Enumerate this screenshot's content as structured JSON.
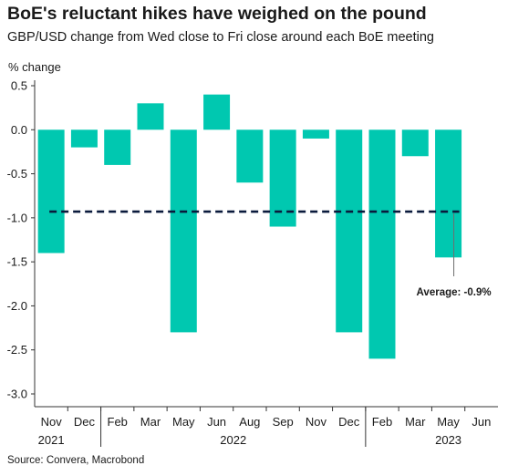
{
  "title": "BoE's reluctant hikes have weighed on the pound",
  "subtitle": "GBP/USD change from Wed close to Fri close around each BoE meeting",
  "source": "Source: Convera, Macrobond",
  "chart_data": {
    "type": "bar",
    "ylabel": "% change",
    "ylim": [
      -3.0,
      0.5
    ],
    "yticks": [
      "0.5",
      "0.0",
      "-0.5",
      "-1.0",
      "-1.5",
      "-2.0",
      "-2.5",
      "-3.0"
    ],
    "ytick_values": [
      0.5,
      0.0,
      -0.5,
      -1.0,
      -1.5,
      -2.0,
      -2.5,
      -3.0
    ],
    "categories": [
      "Nov",
      "Dec",
      "Feb",
      "Mar",
      "May",
      "Jun",
      "Aug",
      "Sep",
      "Nov",
      "Dec",
      "Feb",
      "Mar",
      "May",
      "Jun"
    ],
    "values": [
      -1.4,
      -0.2,
      -0.4,
      0.3,
      -2.3,
      0.4,
      -0.6,
      -1.1,
      -0.1,
      -2.3,
      -2.6,
      -0.3,
      -1.45,
      null
    ],
    "year_labels": [
      {
        "label": "2021",
        "index": 0
      },
      {
        "label": "2022",
        "index": 5.5
      },
      {
        "label": "2023",
        "index": 12
      }
    ],
    "year_separators_after": [
      1,
      9
    ],
    "average": {
      "value": -0.93,
      "label": "Average: -0.9%"
    },
    "bar_color": "#00c8b0",
    "average_line_color": "#0a1a3c",
    "grid": false
  }
}
